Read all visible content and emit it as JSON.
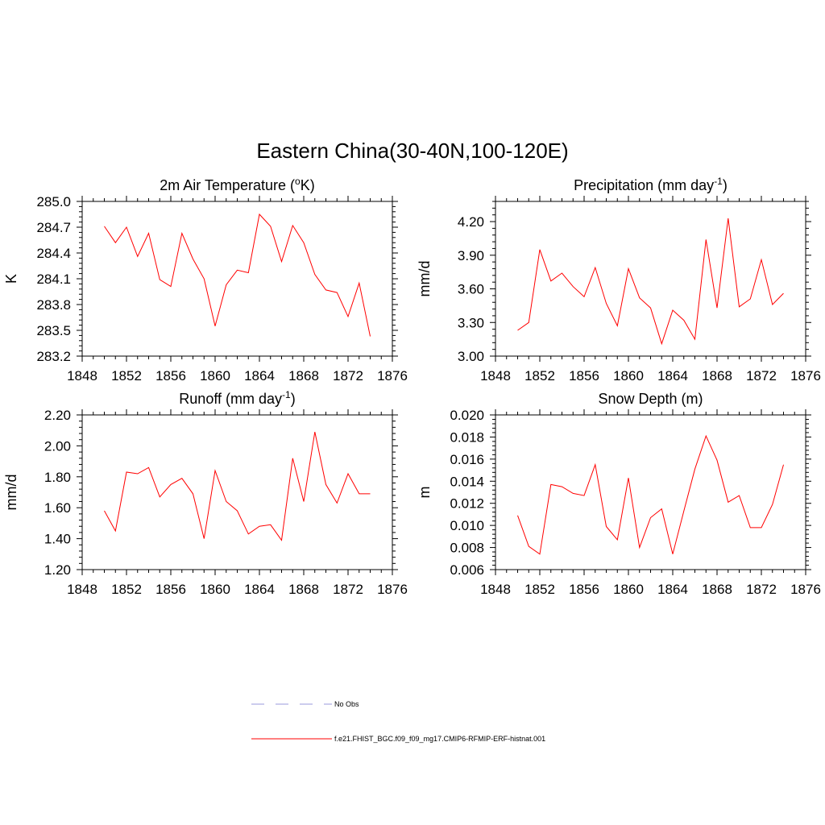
{
  "title": "Eastern China(30-40N,100-120E)",
  "chart_data": [
    {
      "type": "line",
      "title": "2m Air Temperature (",
      "title_sup": "o",
      "title_after": "K)",
      "ylabel": "K",
      "xlim": [
        1848,
        1876
      ],
      "ylim": [
        283.2,
        285.0
      ],
      "xticks": [
        1848,
        1852,
        1856,
        1860,
        1864,
        1868,
        1872,
        1876
      ],
      "yticks": [
        283.2,
        283.5,
        283.8,
        284.1,
        284.4,
        284.7,
        285.0
      ],
      "ytick_labels": [
        "283.2",
        "283.5",
        "283.8",
        "284.1",
        "284.4",
        "284.7",
        "285.0"
      ],
      "x": [
        1850,
        1851,
        1852,
        1853,
        1854,
        1855,
        1856,
        1857,
        1858,
        1859,
        1860,
        1861,
        1862,
        1863,
        1864,
        1865,
        1866,
        1867,
        1868,
        1869,
        1870,
        1871,
        1872,
        1873,
        1874
      ],
      "series": [
        {
          "name": "f.e21.FHIST_BGC.f09_f09_mg17.CMIP6-RFMIP-ERF-histnat.001",
          "values": [
            284.71,
            284.52,
            284.7,
            284.36,
            284.63,
            284.09,
            284.01,
            284.63,
            284.33,
            284.1,
            283.55,
            284.03,
            284.2,
            284.17,
            284.85,
            284.71,
            284.3,
            284.72,
            284.52,
            284.15,
            283.97,
            283.94,
            283.66,
            284.05,
            283.43
          ]
        }
      ]
    },
    {
      "type": "line",
      "title": "Precipitation (mm day",
      "title_sup": "-1",
      "title_after": ")",
      "ylabel": "mm/d",
      "xlim": [
        1848,
        1876
      ],
      "ylim": [
        3.0,
        4.38
      ],
      "xticks": [
        1848,
        1852,
        1856,
        1860,
        1864,
        1868,
        1872,
        1876
      ],
      "yticks": [
        3.0,
        3.3,
        3.6,
        3.9,
        4.2
      ],
      "ytick_labels": [
        "3.00",
        "3.30",
        "3.60",
        "3.90",
        "4.20"
      ],
      "x": [
        1850,
        1851,
        1852,
        1853,
        1854,
        1855,
        1856,
        1857,
        1858,
        1859,
        1860,
        1861,
        1862,
        1863,
        1864,
        1865,
        1866,
        1867,
        1868,
        1869,
        1870,
        1871,
        1872,
        1873,
        1874
      ],
      "series": [
        {
          "name": "f.e21.FHIST_BGC.f09_f09_mg17.CMIP6-RFMIP-ERF-histnat.001",
          "values": [
            3.23,
            3.3,
            3.95,
            3.67,
            3.74,
            3.62,
            3.53,
            3.79,
            3.47,
            3.27,
            3.78,
            3.52,
            3.43,
            3.11,
            3.41,
            3.32,
            3.15,
            4.04,
            3.43,
            4.23,
            3.44,
            3.51,
            3.86,
            3.46,
            3.56
          ]
        }
      ]
    },
    {
      "type": "line",
      "title": "Runoff (mm day",
      "title_sup": "-1",
      "title_after": ")",
      "ylabel": "mm/d",
      "xlim": [
        1848,
        1876
      ],
      "ylim": [
        1.2,
        2.2
      ],
      "xticks": [
        1848,
        1852,
        1856,
        1860,
        1864,
        1868,
        1872,
        1876
      ],
      "yticks": [
        1.2,
        1.4,
        1.6,
        1.8,
        2.0,
        2.2
      ],
      "ytick_labels": [
        "1.20",
        "1.40",
        "1.60",
        "1.80",
        "2.00",
        "2.20"
      ],
      "x": [
        1850,
        1851,
        1852,
        1853,
        1854,
        1855,
        1856,
        1857,
        1858,
        1859,
        1860,
        1861,
        1862,
        1863,
        1864,
        1865,
        1866,
        1867,
        1868,
        1869,
        1870,
        1871,
        1872,
        1873,
        1874
      ],
      "series": [
        {
          "name": "f.e21.FHIST_BGC.f09_f09_mg17.CMIP6-RFMIP-ERF-histnat.001",
          "values": [
            1.58,
            1.45,
            1.83,
            1.82,
            1.86,
            1.67,
            1.75,
            1.79,
            1.69,
            1.4,
            1.84,
            1.64,
            1.58,
            1.43,
            1.48,
            1.49,
            1.39,
            1.92,
            1.64,
            2.09,
            1.75,
            1.63,
            1.82,
            1.69,
            1.69
          ]
        }
      ]
    },
    {
      "type": "line",
      "title": "Snow Depth (m)",
      "title_sup": "",
      "title_after": "",
      "ylabel": "m",
      "xlim": [
        1848,
        1876
      ],
      "ylim": [
        0.006,
        0.02
      ],
      "xticks": [
        1848,
        1852,
        1856,
        1860,
        1864,
        1868,
        1872,
        1876
      ],
      "yticks": [
        0.006,
        0.008,
        0.01,
        0.012,
        0.014,
        0.016,
        0.018,
        0.02
      ],
      "ytick_labels": [
        "0.006",
        "0.008",
        "0.010",
        "0.012",
        "0.014",
        "0.016",
        "0.018",
        "0.020"
      ],
      "x": [
        1850,
        1851,
        1852,
        1853,
        1854,
        1855,
        1856,
        1857,
        1858,
        1859,
        1860,
        1861,
        1862,
        1863,
        1864,
        1865,
        1866,
        1867,
        1868,
        1869,
        1870,
        1871,
        1872,
        1873,
        1874
      ],
      "series": [
        {
          "name": "f.e21.FHIST_BGC.f09_f09_mg17.CMIP6-RFMIP-ERF-histnat.001",
          "values": [
            0.0109,
            0.0081,
            0.0074,
            0.0137,
            0.0135,
            0.0129,
            0.0127,
            0.0155,
            0.0099,
            0.0087,
            0.0143,
            0.008,
            0.0107,
            0.0115,
            0.0074,
            0.0113,
            0.0151,
            0.0181,
            0.0159,
            0.0121,
            0.0127,
            0.0098,
            0.0098,
            0.0119,
            0.0155
          ]
        }
      ]
    }
  ],
  "legend": {
    "items": [
      {
        "label": "No Obs",
        "color": "#9999dd",
        "style": "dashed"
      },
      {
        "label": "f.e21.FHIST_BGC.f09_f09_mg17.CMIP6-RFMIP-ERF-histnat.001",
        "color": "#ff0000",
        "style": "solid"
      }
    ]
  },
  "colors": {
    "series": "#ff0000",
    "axis": "#000000"
  }
}
